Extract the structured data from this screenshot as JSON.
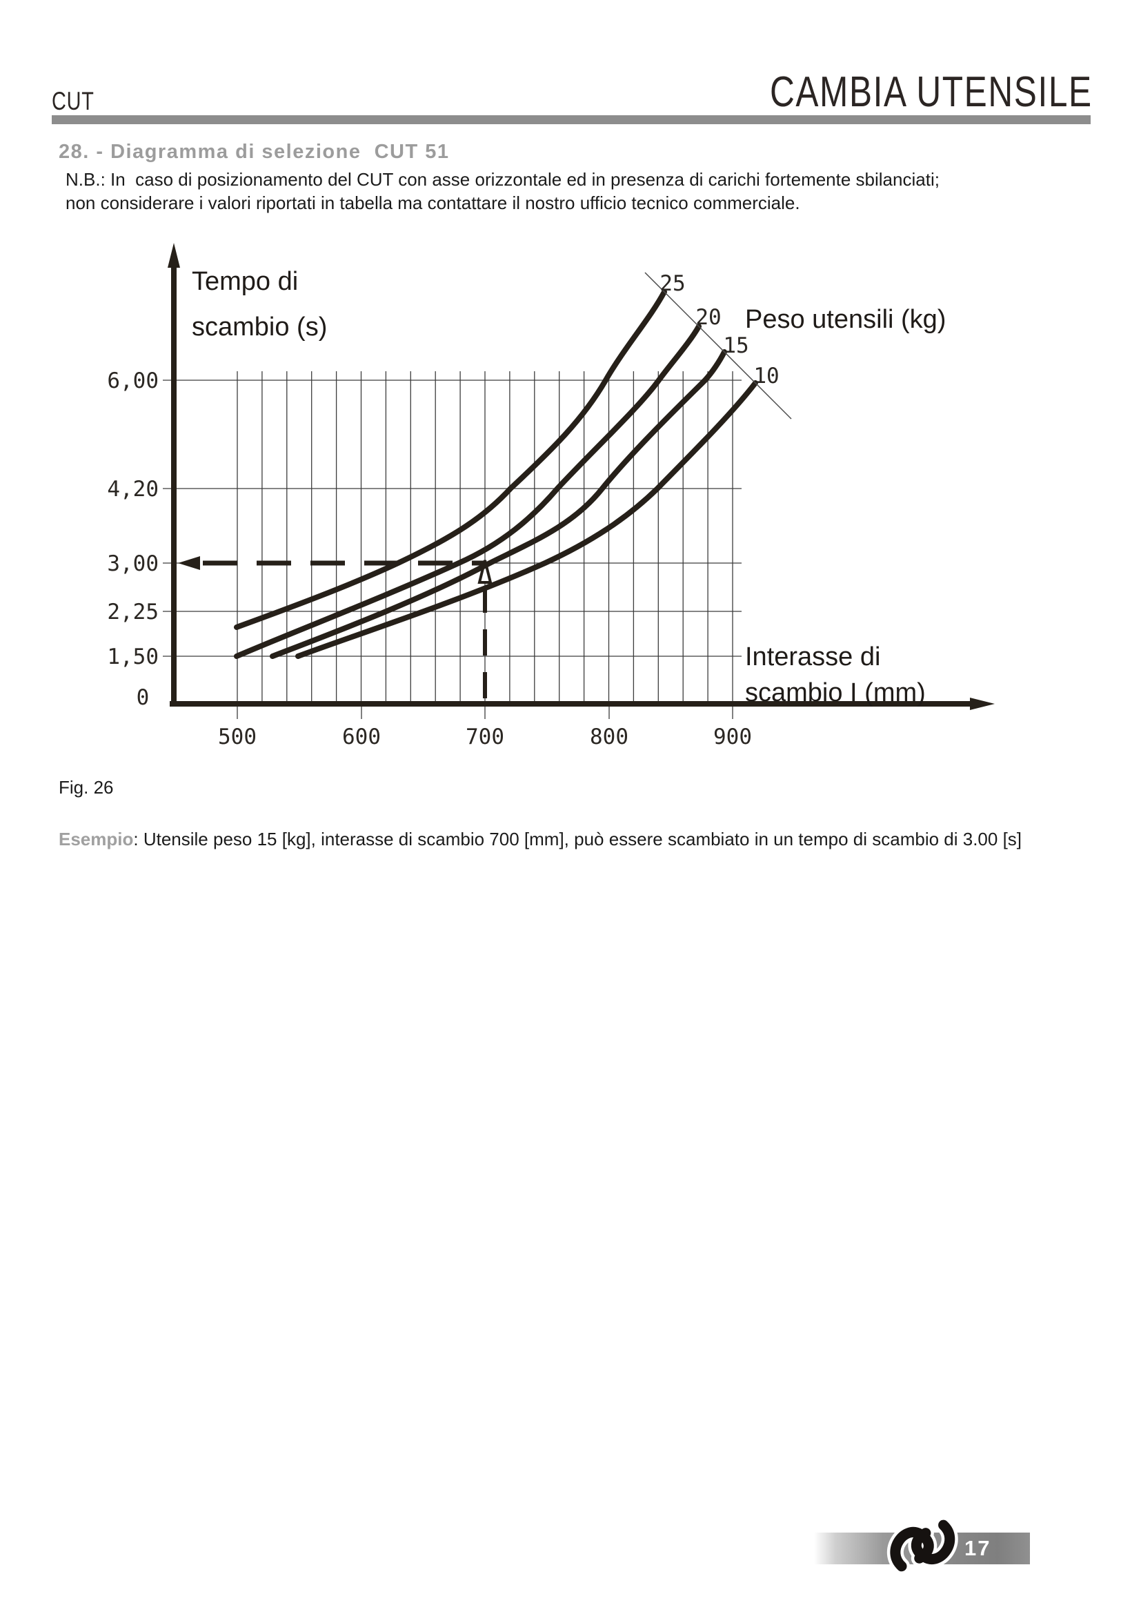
{
  "header": {
    "product_code": "CUT",
    "title": "CAMBIA UTENSILE"
  },
  "section": {
    "heading": "28. - Diagramma di selezione  CUT 51",
    "note_line1": "N.B.: In  caso di posizionamento del CUT con asse orizzontale ed in presenza di carichi fortemente sbilanciati;",
    "note_line2": "non considerare i valori riportati in tabella ma contattare il nostro ufficio tecnico commerciale."
  },
  "figure": {
    "caption": "Fig. 26"
  },
  "example": {
    "label": "Esempio",
    "text": ": Utensile peso 15 [kg], interasse di scambio 700 [mm], può essere scambiato in un tempo di scambio di 3.00 [s]"
  },
  "footer": {
    "page_number": "17",
    "logo": "knot-ribbon-logo"
  },
  "chart_data": {
    "type": "line",
    "title": "Diagramma di selezione CUT 51",
    "y_axis_title": [
      "Tempo di",
      "scambio (s)"
    ],
    "x_axis_title": [
      "Interasse di",
      "scambio  I (mm)"
    ],
    "series_title": "Peso utensili  (kg)",
    "y_unit": "s",
    "x_unit": "mm",
    "y_ticks": [
      "6,00",
      "4,20",
      "3,00",
      "2,25",
      "1,50"
    ],
    "y_tick_values": [
      6.0,
      4.2,
      3.0,
      2.25,
      1.5
    ],
    "origin_label": "0",
    "x_ticks": [
      "500",
      "600",
      "700",
      "800",
      "900"
    ],
    "x_tick_values": [
      500,
      600,
      700,
      800,
      900
    ],
    "xlim": [
      450,
      950
    ],
    "ylim": [
      0,
      7.5
    ],
    "grid": true,
    "grid_x_step_mm": 20,
    "legend_position": "labels-at-curve-ends",
    "series": [
      {
        "label": "25",
        "weight_kg": 25,
        "points_mm_s": [
          [
            500,
            2.0
          ],
          [
            537,
            2.25
          ],
          [
            629,
            3.0
          ],
          [
            720,
            4.2
          ],
          [
            796,
            6.0
          ],
          [
            840,
            7.5
          ]
        ]
      },
      {
        "label": "20",
        "weight_kg": 20,
        "points_mm_s": [
          [
            500,
            1.5
          ],
          [
            576,
            2.25
          ],
          [
            678,
            3.0
          ],
          [
            757,
            4.2
          ],
          [
            839,
            6.0
          ],
          [
            866,
            7.0
          ]
        ]
      },
      {
        "label": "15",
        "weight_kg": 15,
        "points_mm_s": [
          [
            527,
            1.5
          ],
          [
            615,
            2.25
          ],
          [
            700,
            3.0
          ],
          [
            794,
            4.2
          ],
          [
            877,
            6.0
          ],
          [
            891,
            6.5
          ]
        ]
      },
      {
        "label": "10",
        "weight_kg": 10,
        "points_mm_s": [
          [
            548,
            1.5
          ],
          [
            654,
            2.25
          ],
          [
            747,
            3.0
          ],
          [
            838,
            4.2
          ],
          [
            917,
            5.95
          ]
        ]
      }
    ],
    "example_annotation": {
      "weight_kg": 15,
      "interasse_mm": 700,
      "tempo_s": "3,00"
    }
  }
}
